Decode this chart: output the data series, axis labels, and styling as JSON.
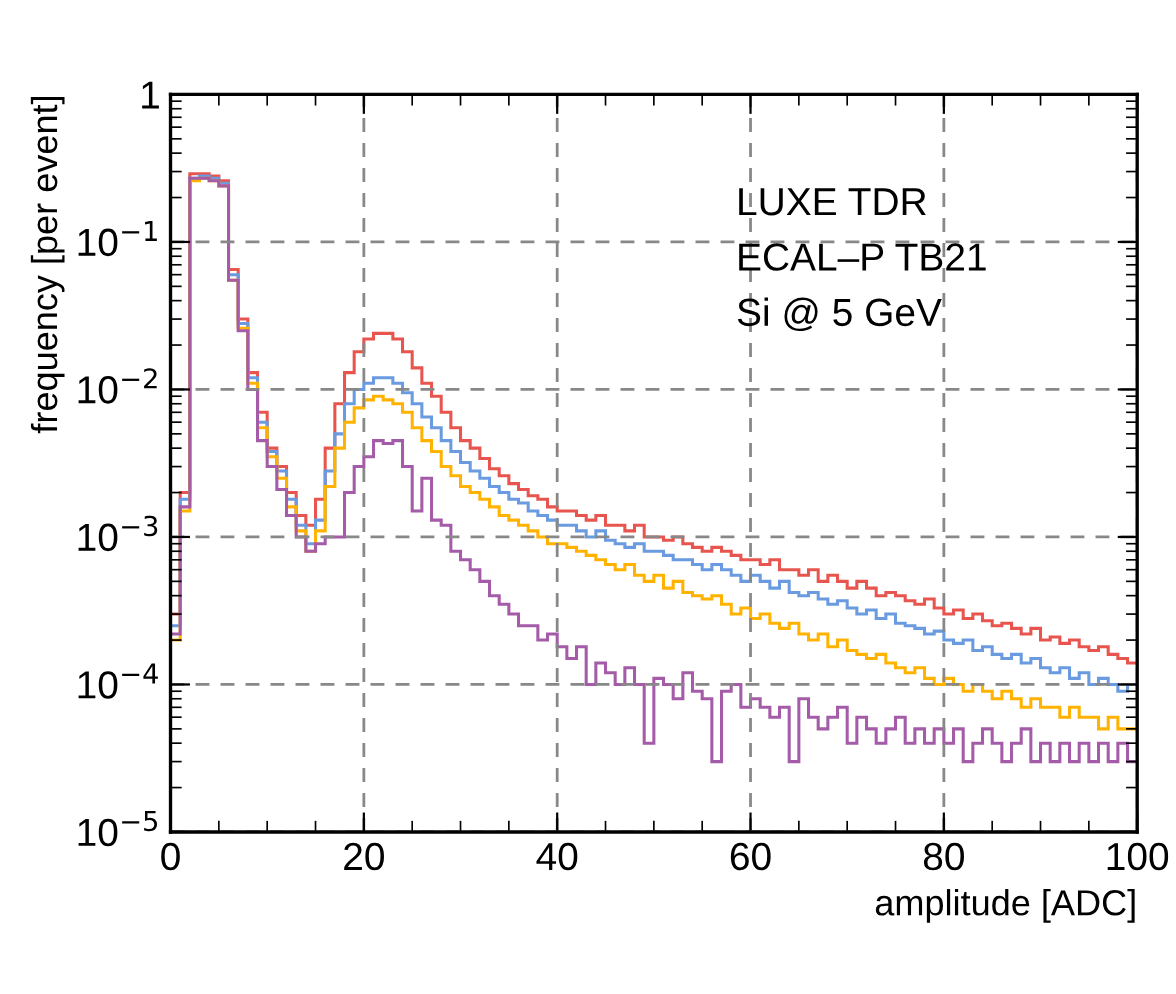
{
  "chart_data": {
    "type": "histogram",
    "xlabel": "amplitude [ADC]",
    "ylabel": "frequency [per event]",
    "annotations": [
      "LUXE TDR",
      "ECAL–P TB21",
      "Si @ 5 GeV"
    ],
    "bins": [
      0,
      1,
      2,
      3,
      4,
      5,
      6,
      7,
      8,
      9,
      10,
      11,
      12,
      13,
      14,
      15,
      16,
      17,
      18,
      19,
      20,
      21,
      22,
      23,
      24,
      25,
      26,
      27,
      28,
      29,
      30,
      31,
      32,
      33,
      34,
      35,
      36,
      37,
      38,
      39,
      40,
      41,
      42,
      43,
      44,
      45,
      46,
      47,
      48,
      49,
      50,
      51,
      52,
      53,
      54,
      55,
      56,
      57,
      58,
      59,
      60,
      61,
      62,
      63,
      64,
      65,
      66,
      67,
      68,
      69,
      70,
      71,
      72,
      73,
      74,
      75,
      76,
      77,
      78,
      79,
      80,
      81,
      82,
      83,
      84,
      85,
      86,
      87,
      88,
      89,
      90,
      91,
      92,
      93,
      94,
      95,
      96,
      97,
      98,
      99,
      100
    ],
    "series": [
      {
        "color": "#e8554e",
        "values": [
          0.0003,
          0.002,
          0.29,
          0.29,
          0.28,
          0.26,
          0.065,
          0.03,
          0.013,
          0.007,
          0.004,
          0.003,
          0.002,
          0.0014,
          0.0012,
          0.0018,
          0.004,
          0.008,
          0.013,
          0.018,
          0.022,
          0.024,
          0.024,
          0.022,
          0.018,
          0.014,
          0.011,
          0.009,
          0.007,
          0.0055,
          0.0045,
          0.004,
          0.0034,
          0.0029,
          0.0026,
          0.0023,
          0.0021,
          0.0019,
          0.0018,
          0.0016,
          0.0015,
          0.0015,
          0.0014,
          0.0013,
          0.0014,
          0.0012,
          0.0012,
          0.0011,
          0.0012,
          0.001,
          0.001,
          0.00095,
          0.001,
          0.0009,
          0.00085,
          0.0008,
          0.00085,
          0.0008,
          0.00075,
          0.0007,
          0.0007,
          0.00065,
          0.0007,
          0.0006,
          0.0006,
          0.00055,
          0.0006,
          0.0005,
          0.00055,
          0.0005,
          0.00045,
          0.0005,
          0.00045,
          0.0004,
          0.00042,
          0.0004,
          0.00037,
          0.00035,
          0.00038,
          0.00033,
          0.0003,
          0.00032,
          0.00028,
          0.0003,
          0.00027,
          0.00025,
          0.00026,
          0.00024,
          0.00022,
          0.00024,
          0.0002,
          0.00021,
          0.00019,
          0.0002,
          0.00018,
          0.00017,
          0.00018,
          0.00016,
          0.00015,
          0.00014
        ]
      },
      {
        "color": "#6a9be0",
        "values": [
          0.00025,
          0.0018,
          0.27,
          0.28,
          0.27,
          0.25,
          0.06,
          0.028,
          0.012,
          0.006,
          0.0038,
          0.0028,
          0.0018,
          0.0012,
          0.0009,
          0.0013,
          0.0028,
          0.005,
          0.008,
          0.01,
          0.011,
          0.012,
          0.012,
          0.011,
          0.0095,
          0.008,
          0.0065,
          0.0055,
          0.0045,
          0.0038,
          0.0032,
          0.0028,
          0.0025,
          0.0022,
          0.002,
          0.0018,
          0.0017,
          0.0015,
          0.0014,
          0.0013,
          0.0012,
          0.0012,
          0.0011,
          0.001,
          0.0011,
          0.00095,
          0.0009,
          0.00085,
          0.0009,
          0.0008,
          0.0008,
          0.00075,
          0.0007,
          0.0007,
          0.00065,
          0.0006,
          0.00065,
          0.0006,
          0.00055,
          0.0005,
          0.00055,
          0.0005,
          0.00045,
          0.0005,
          0.00042,
          0.0004,
          0.00042,
          0.00038,
          0.00035,
          0.00037,
          0.00033,
          0.0003,
          0.00032,
          0.00028,
          0.0003,
          0.00026,
          0.00025,
          0.00024,
          0.00022,
          0.00023,
          0.0002,
          0.00019,
          0.0002,
          0.00017,
          0.00018,
          0.00016,
          0.00015,
          0.00016,
          0.00014,
          0.00015,
          0.00013,
          0.00012,
          0.00013,
          0.00011,
          0.00012,
          0.0001,
          0.00011,
          0.0001,
          9e-05,
          0.0001
        ]
      },
      {
        "color": "#ffb300",
        "values": [
          0.0002,
          0.0015,
          0.26,
          0.27,
          0.26,
          0.24,
          0.055,
          0.026,
          0.011,
          0.0055,
          0.0035,
          0.0025,
          0.0016,
          0.0011,
          0.0008,
          0.0011,
          0.0022,
          0.004,
          0.006,
          0.0075,
          0.0085,
          0.009,
          0.0085,
          0.008,
          0.007,
          0.0055,
          0.0045,
          0.0038,
          0.003,
          0.0026,
          0.0022,
          0.002,
          0.0018,
          0.0016,
          0.0014,
          0.0013,
          0.0012,
          0.0011,
          0.001,
          0.0009,
          0.0009,
          0.00085,
          0.0008,
          0.00075,
          0.0007,
          0.00065,
          0.0006,
          0.00065,
          0.00055,
          0.0005,
          0.00055,
          0.00045,
          0.0005,
          0.00042,
          0.0004,
          0.00038,
          0.0004,
          0.00035,
          0.0003,
          0.00033,
          0.00028,
          0.0003,
          0.00026,
          0.00024,
          0.00026,
          0.00022,
          0.0002,
          0.00022,
          0.00018,
          0.0002,
          0.00017,
          0.00016,
          0.00015,
          0.00016,
          0.00014,
          0.00013,
          0.00012,
          0.00013,
          0.00011,
          0.0001,
          0.00011,
          0.0001,
          9e-05,
          0.0001,
          9e-05,
          8e-05,
          9e-05,
          8e-05,
          7e-05,
          8e-05,
          7e-05,
          7e-05,
          6e-05,
          7e-05,
          6e-05,
          6e-05,
          5e-05,
          6e-05,
          5e-05,
          5e-05
        ]
      },
      {
        "color": "#a45ba8",
        "values": [
          0.00022,
          0.0016,
          0.27,
          0.27,
          0.26,
          0.24,
          0.055,
          0.025,
          0.01,
          0.0045,
          0.003,
          0.0021,
          0.0014,
          0.001,
          0.0008,
          0.0009,
          0.001,
          0.001,
          0.002,
          0.003,
          0.0035,
          0.0045,
          0.0043,
          0.0045,
          0.003,
          0.0015,
          0.0025,
          0.0013,
          0.0012,
          0.0008,
          0.0007,
          0.0006,
          0.0005,
          0.0004,
          0.00035,
          0.0003,
          0.00025,
          0.00025,
          0.0002,
          0.00022,
          0.00018,
          0.00015,
          0.00018,
          0.0001,
          0.00014,
          0.00012,
          0.0001,
          0.00013,
          0.0001,
          4e-05,
          0.00011,
          0.0001,
          8e-05,
          0.00012,
          9e-05,
          8e-05,
          3e-05,
          9e-05,
          0.0001,
          7e-05,
          8e-05,
          7e-05,
          6e-05,
          7e-05,
          3e-05,
          8e-05,
          6e-05,
          5e-05,
          6e-05,
          7e-05,
          4e-05,
          6e-05,
          5e-05,
          4e-05,
          5e-05,
          6e-05,
          4e-05,
          5e-05,
          4e-05,
          5e-05,
          4e-05,
          5e-05,
          3e-05,
          4e-05,
          5e-05,
          4e-05,
          3e-05,
          4e-05,
          5e-05,
          3e-05,
          4e-05,
          3e-05,
          4e-05,
          3e-05,
          4e-05,
          3e-05,
          4e-05,
          3e-05,
          4e-05,
          3e-05
        ]
      }
    ],
    "xlim": [
      0,
      100
    ],
    "xticks": [
      0,
      20,
      40,
      60,
      80,
      100
    ],
    "ylim": [
      1e-05,
      1
    ],
    "yticks": [
      {
        "value": 1e-05,
        "label": "10$^{−5}$"
      },
      {
        "value": 0.0001,
        "label": "10$^{−4}$"
      },
      {
        "value": 0.001,
        "label": "10$^{−3}$"
      },
      {
        "value": 0.01,
        "label": "10$^{−2}$"
      },
      {
        "value": 0.1,
        "label": "10$^{−1}$"
      },
      1
    ],
    "log": true,
    "grid": true,
    "legend": false
  }
}
